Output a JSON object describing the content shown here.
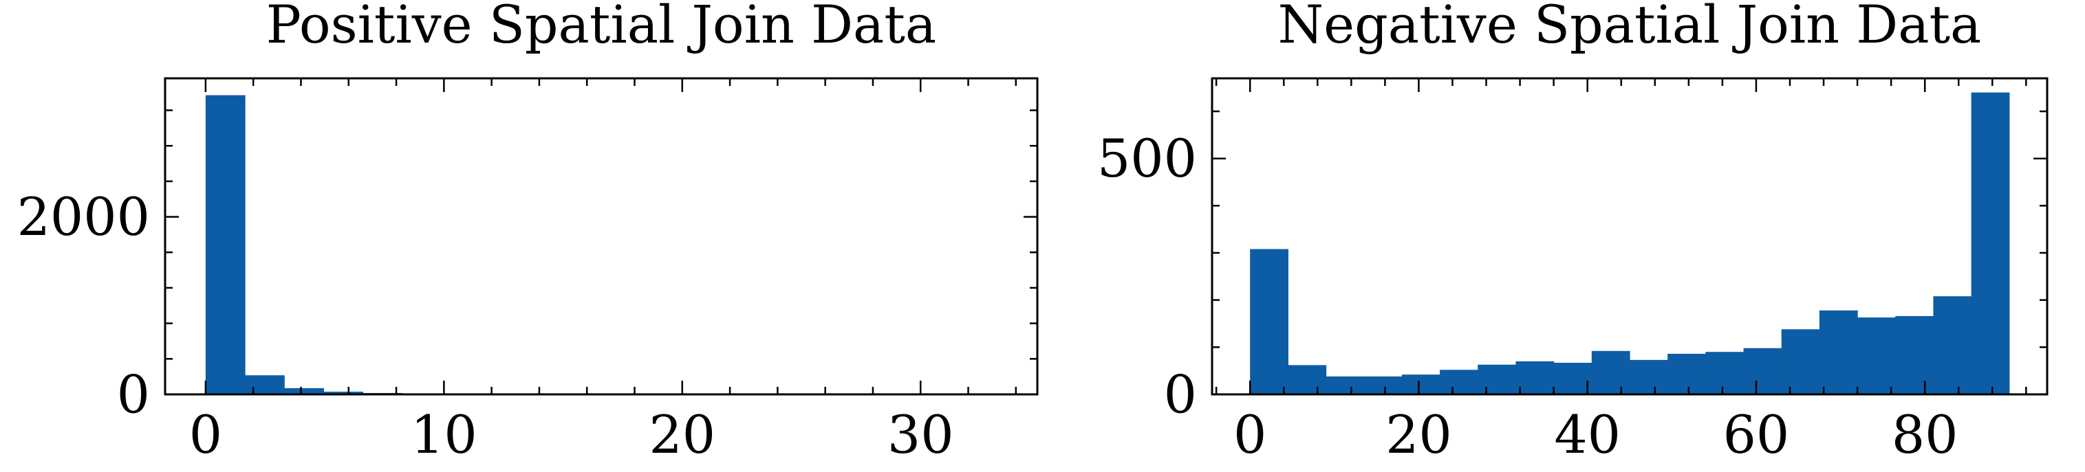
{
  "chart_data": [
    {
      "type": "bar",
      "title": "Positive Spatial Join Data",
      "xlabel": "",
      "ylabel": "",
      "xlim": [
        -1.7,
        34.9
      ],
      "ylim": [
        0,
        3560
      ],
      "xticks": [
        0,
        10,
        20,
        30
      ],
      "xtick_labels": [
        "0",
        "10",
        "20",
        "30"
      ],
      "yticks": [
        0,
        2000
      ],
      "ytick_labels": [
        "0",
        "2000"
      ],
      "bin_edges": [
        0,
        1.65,
        3.3,
        4.95,
        6.6,
        8.25,
        9.9,
        11.55,
        13.2,
        14.85,
        16.5,
        18.15,
        19.8,
        21.45,
        23.1,
        24.75,
        26.4,
        28.05,
        29.7,
        31.35,
        33.0
      ],
      "values": [
        3370,
        215,
        70,
        30,
        15,
        8,
        5,
        3,
        2,
        1,
        1,
        1,
        0,
        0,
        0,
        0,
        0,
        0,
        0,
        1
      ],
      "bar_color": "#0c5da5",
      "grid": false,
      "legend": false
    },
    {
      "type": "bar",
      "title": "Negative Spatial Join Data",
      "xlabel": "",
      "ylabel": "",
      "xlim": [
        -4.5,
        94.5
      ],
      "ylim": [
        0,
        670
      ],
      "xticks": [
        0,
        20,
        40,
        60,
        80
      ],
      "xtick_labels": [
        "0",
        "20",
        "40",
        "60",
        "80"
      ],
      "yticks": [
        0,
        500
      ],
      "ytick_labels": [
        "0",
        "500"
      ],
      "bin_edges": [
        0,
        4.5,
        9,
        13.5,
        18,
        22.5,
        27,
        31.5,
        36,
        40.5,
        45,
        49.5,
        54,
        58.5,
        63,
        67.5,
        72,
        76.5,
        81,
        85.5,
        90
      ],
      "values": [
        308,
        62,
        38,
        38,
        42,
        52,
        63,
        70,
        67,
        92,
        73,
        86,
        90,
        98,
        138,
        178,
        163,
        166,
        208,
        640
      ],
      "bar_color": "#0c5da5",
      "grid": false,
      "legend": false
    }
  ]
}
